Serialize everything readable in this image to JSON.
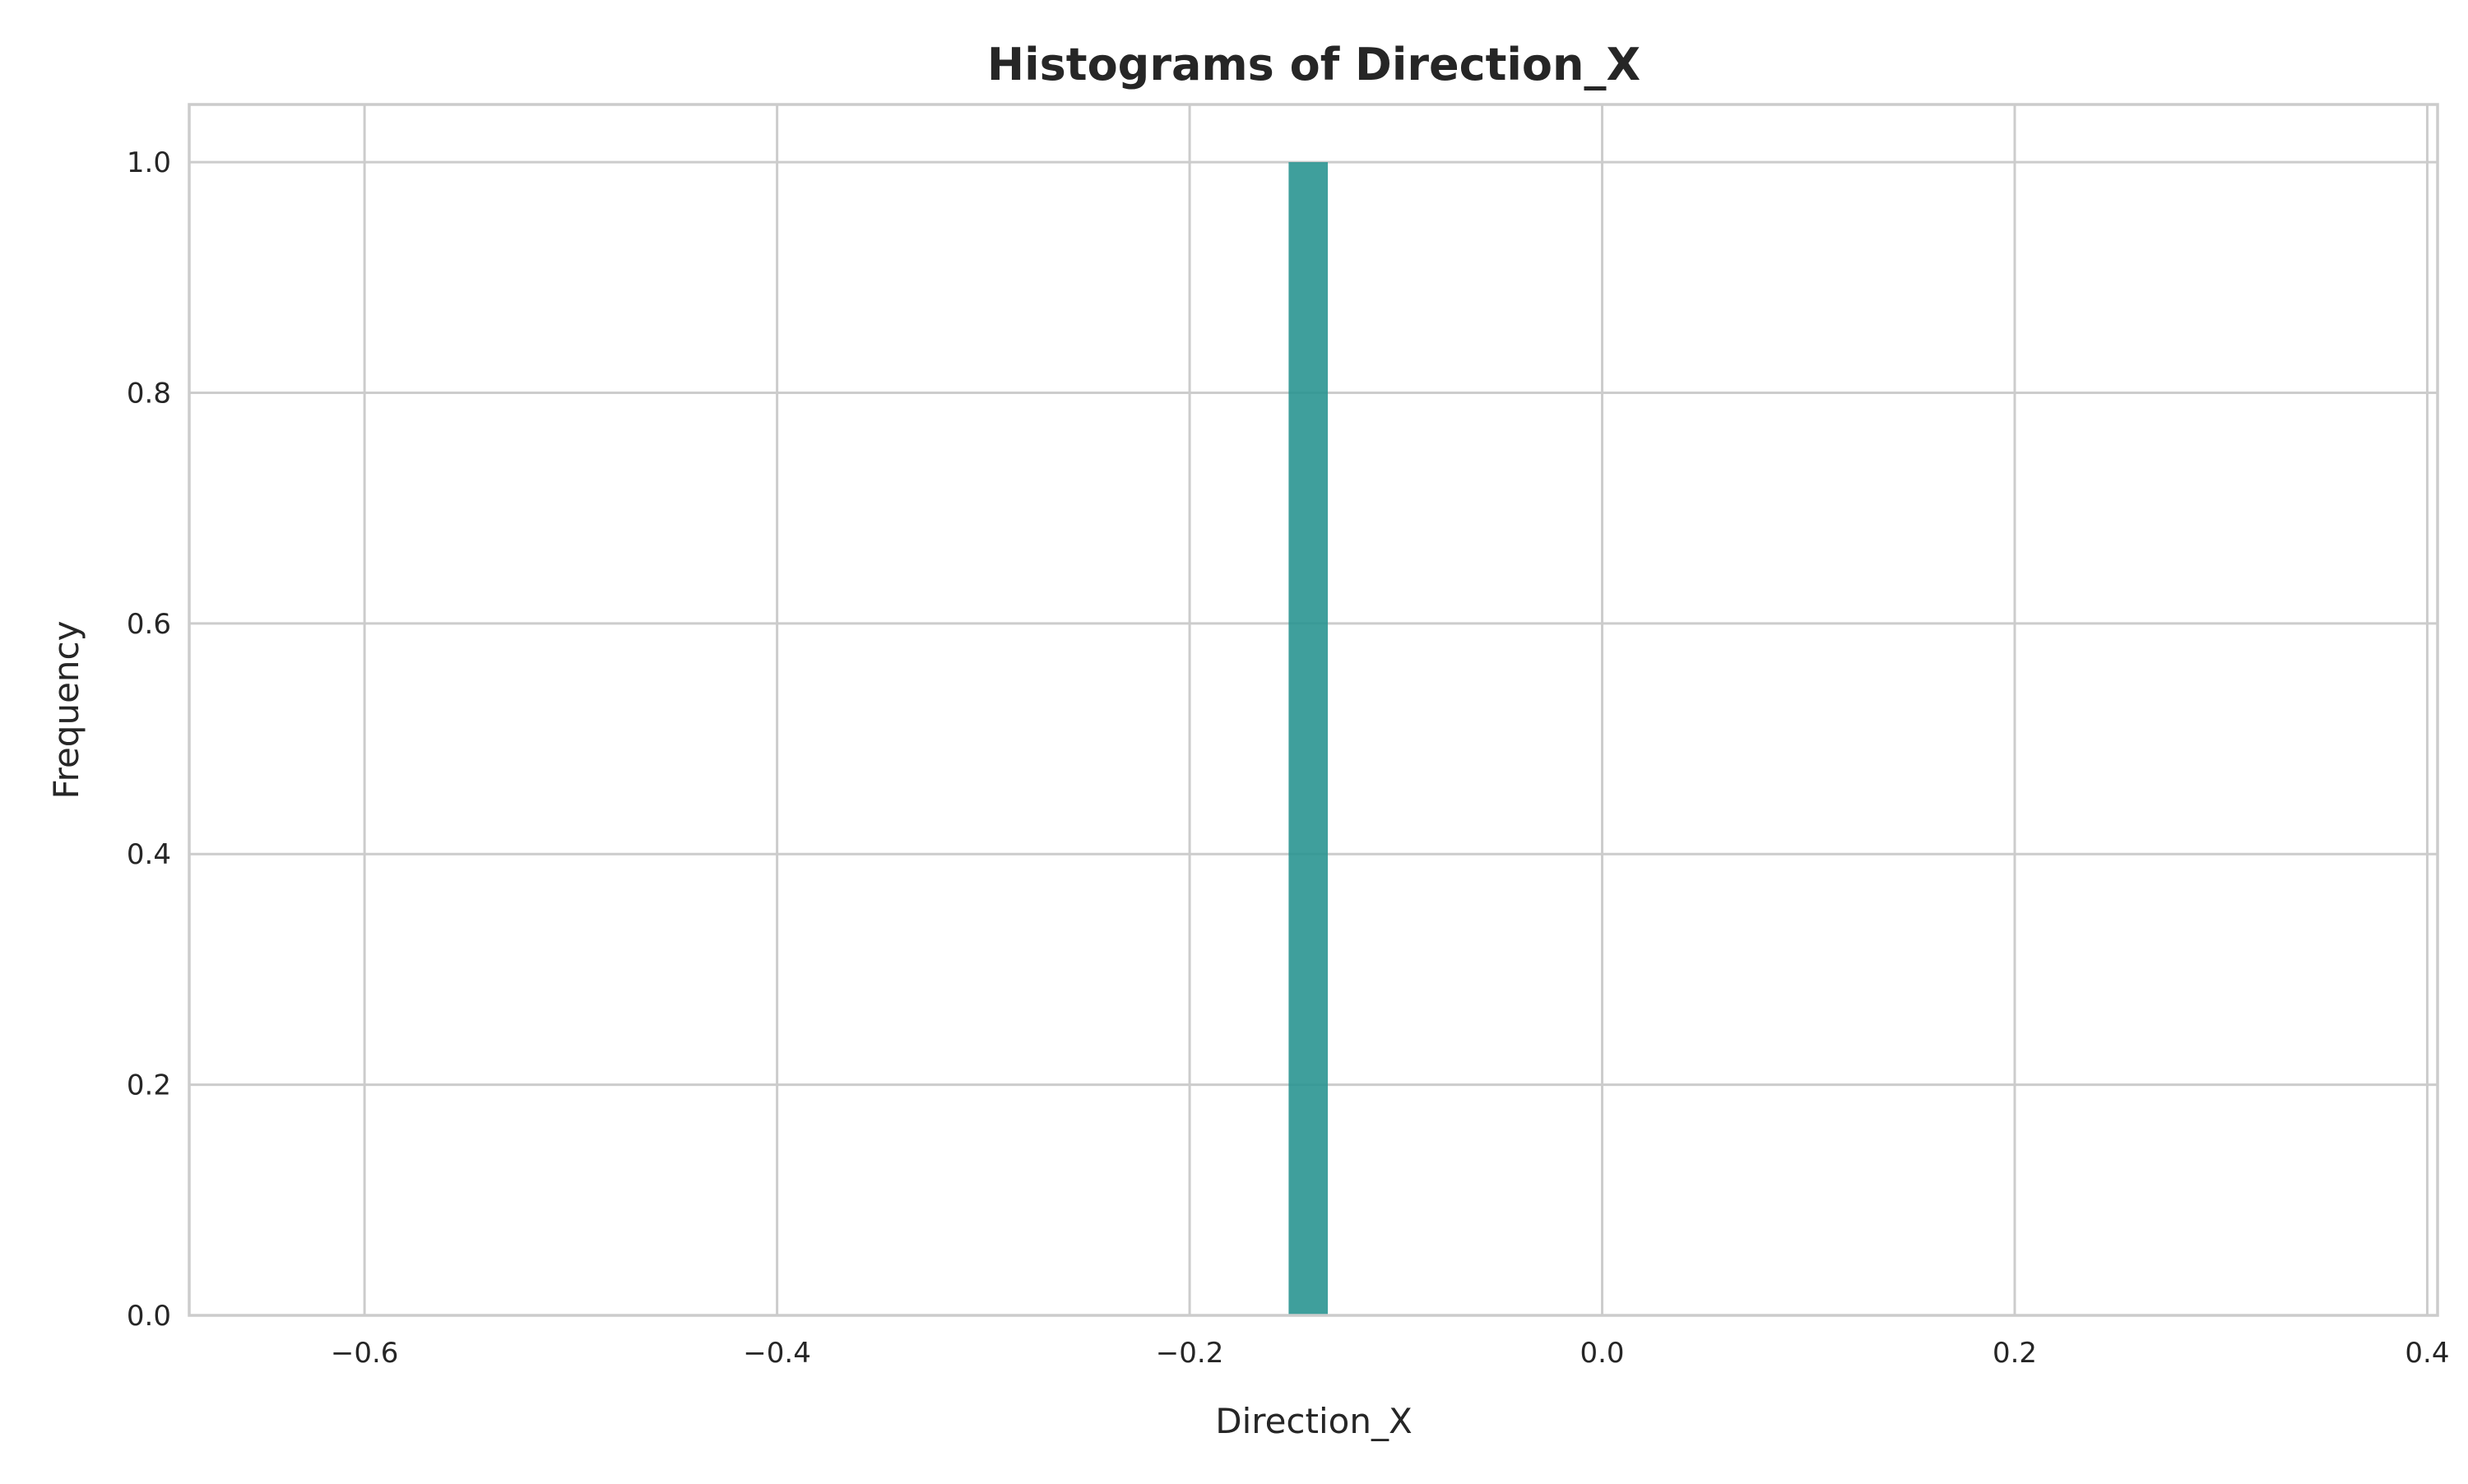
{
  "chart_data": {
    "type": "bar",
    "title": "Histograms of Direction_X",
    "xlabel": "Direction_X",
    "ylabel": "Frequency",
    "xlim": [
      -0.685,
      0.405
    ],
    "ylim": [
      0,
      1.05
    ],
    "xticks": [
      -0.6,
      -0.4,
      -0.2,
      0.0,
      0.2,
      0.4
    ],
    "xtick_labels": [
      "−0.6",
      "−0.4",
      "−0.2",
      "0.0",
      "0.2",
      "0.4"
    ],
    "yticks": [
      0.0,
      0.2,
      0.4,
      0.6,
      0.8,
      1.0
    ],
    "ytick_labels": [
      "0.0",
      "0.2",
      "0.4",
      "0.6",
      "0.8",
      "1.0"
    ],
    "grid": true,
    "bars": [
      {
        "x_start": -0.152,
        "x_end": -0.133,
        "value": 1.0
      }
    ],
    "bar_color": "#2a9591",
    "bar_opacity": 0.9
  }
}
